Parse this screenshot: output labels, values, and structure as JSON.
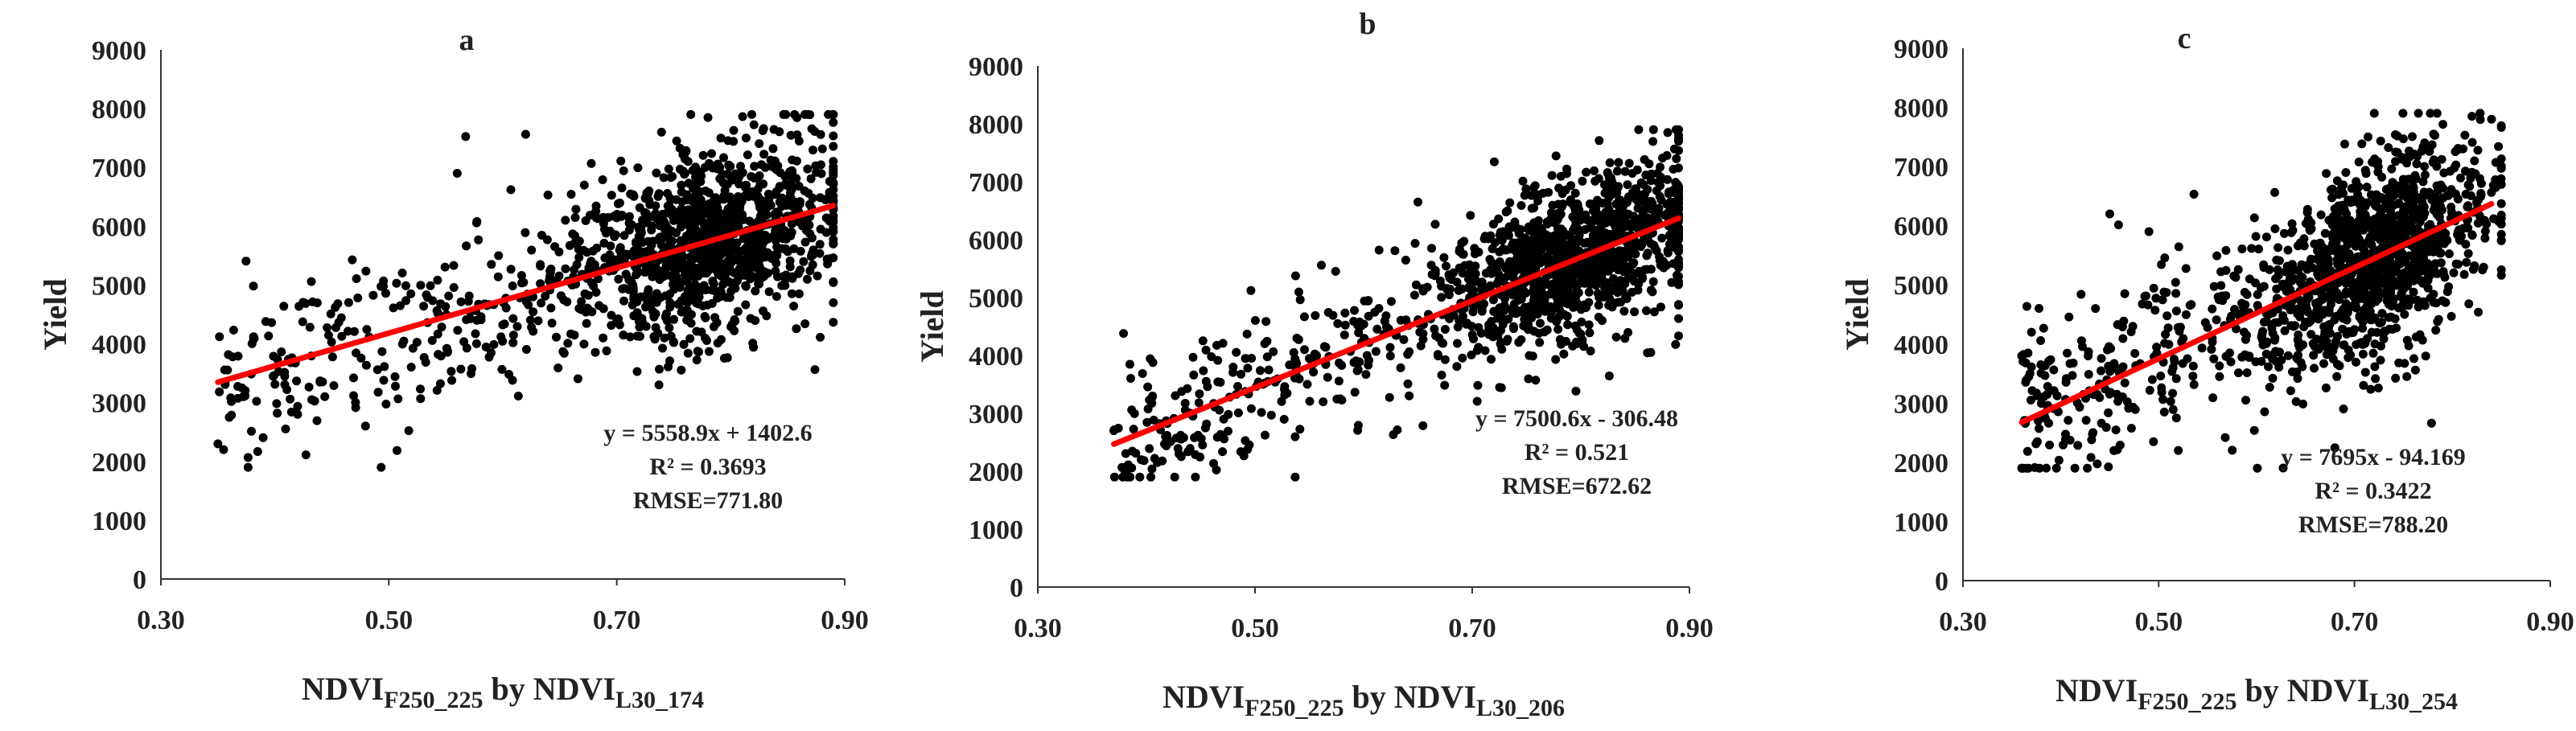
{
  "chart_data": [
    {
      "type": "scatter",
      "title": "a",
      "xlabel": {
        "main": "NDVI",
        "sub1": "F250_225",
        "mid": " by NDVI",
        "sub2": "L30_174"
      },
      "ylabel": "Yield",
      "xlim": [
        0.3,
        0.9
      ],
      "ylim": [
        0,
        9000
      ],
      "xticks": [
        "0.30",
        "0.50",
        "0.70",
        "0.90"
      ],
      "yticks": [
        "0",
        "1000",
        "2000",
        "3000",
        "4000",
        "5000",
        "6000",
        "7000",
        "8000",
        "9000"
      ],
      "fit": {
        "slope": 5558.9,
        "intercept": 1402.6,
        "x_range": [
          0.35,
          0.89
        ]
      },
      "annotation": [
        "y = 5558.9x + 1402.6",
        "R² = 0.3693",
        "RMSE=771.80"
      ],
      "marker_color": "#000000",
      "fit_color": "#ff0000",
      "points": {
        "n": 1400,
        "seed": 11,
        "x_range": [
          0.35,
          0.89
        ],
        "x_mode": 0.79,
        "resid_sd": 760,
        "extra": [
          [
            0.35,
            2300
          ],
          [
            0.355,
            2200
          ],
          [
            0.36,
            2750
          ],
          [
            0.42,
            2800
          ],
          [
            0.56,
            6900
          ],
          [
            0.78,
            7850
          ],
          [
            0.86,
            7450
          ],
          [
            0.89,
            4700
          ]
        ]
      }
    },
    {
      "type": "scatter",
      "title": "b",
      "xlabel": {
        "main": "NDVI",
        "sub1": "F250_225",
        "mid": " by NDVI",
        "sub2": "L30_206"
      },
      "ylabel": "Yield",
      "xlim": [
        0.3,
        0.9
      ],
      "ylim": [
        0,
        9000
      ],
      "xticks": [
        "0.30",
        "0.50",
        "0.70",
        "0.90"
      ],
      "yticks": [
        "0",
        "1000",
        "2000",
        "3000",
        "4000",
        "5000",
        "6000",
        "7000",
        "8000",
        "9000"
      ],
      "fit": {
        "slope": 7500.6,
        "intercept": -306.48,
        "x_range": [
          0.37,
          0.89
        ]
      },
      "annotation": [
        "y = 7500.6x - 306.48",
        "R² = 0.521",
        "RMSE=672.62"
      ],
      "marker_color": "#000000",
      "fit_color": "#ff0000",
      "points": {
        "n": 1400,
        "seed": 23,
        "x_range": [
          0.37,
          0.89
        ],
        "x_mode": 0.8,
        "resid_sd": 640,
        "extra": [
          [
            0.37,
            2700
          ],
          [
            0.41,
            2150
          ],
          [
            0.43,
            2300
          ],
          [
            0.65,
            6650
          ],
          [
            0.88,
            7850
          ],
          [
            0.89,
            7700
          ]
        ]
      }
    },
    {
      "type": "scatter",
      "title": "c",
      "xlabel": {
        "main": "NDVI",
        "sub1": "F250_225",
        "mid": " by NDVI",
        "sub2": "L30_254"
      },
      "ylabel": "Yield",
      "xlim": [
        0.3,
        0.9
      ],
      "ylim": [
        0,
        9000
      ],
      "xticks": [
        "0.30",
        "0.50",
        "0.70",
        "0.90"
      ],
      "yticks": [
        "0",
        "1000",
        "2000",
        "3000",
        "4000",
        "5000",
        "6000",
        "7000",
        "8000",
        "9000"
      ],
      "fit": {
        "slope": 7695,
        "intercept": -94.169,
        "x_range": [
          0.36,
          0.84
        ]
      },
      "annotation": [
        "y = 7695x - 94.169",
        "R² = 0.3422",
        "RMSE=788.20"
      ],
      "marker_color": "#000000",
      "fit_color": "#ff0000",
      "points": {
        "n": 1400,
        "seed": 37,
        "x_range": [
          0.36,
          0.85
        ],
        "x_mode": 0.73,
        "resid_sd": 780,
        "extra": [
          [
            0.36,
            3800
          ],
          [
            0.37,
            4200
          ],
          [
            0.45,
            6200
          ],
          [
            0.49,
            5900
          ],
          [
            0.52,
            2200
          ],
          [
            0.82,
            7850
          ],
          [
            0.84,
            7800
          ]
        ]
      }
    }
  ]
}
